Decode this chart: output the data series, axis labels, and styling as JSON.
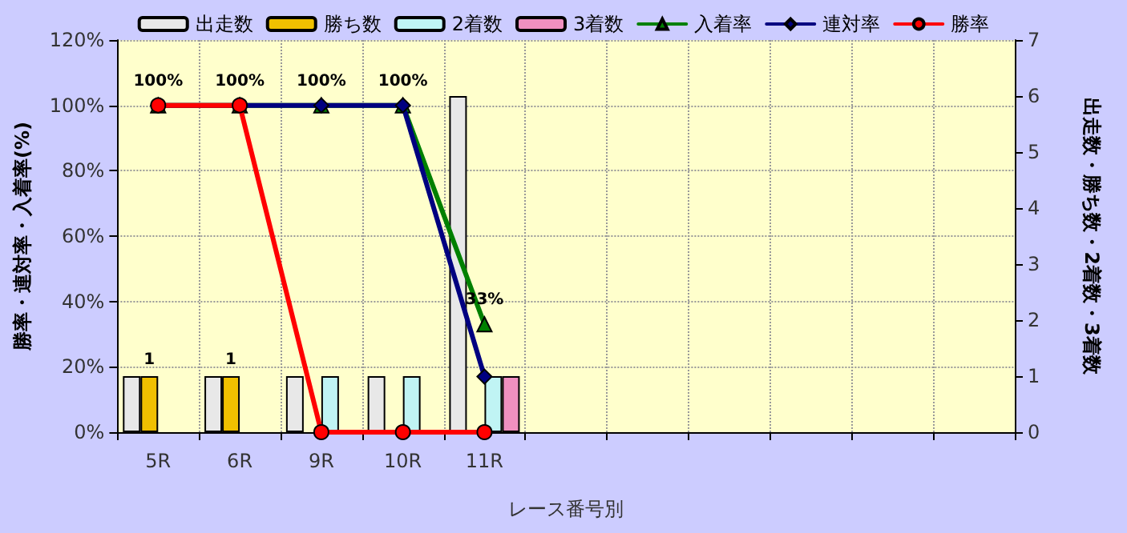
{
  "chart_data": {
    "type": "bar",
    "xlabel": "レース番号別",
    "ylabel": "勝率・連対率・入着率(%)",
    "y2label": "出走数・勝ち数・2着数・3着数",
    "categories": [
      "5R",
      "6R",
      "9R",
      "10R",
      "11R",
      null,
      null,
      null,
      null,
      null,
      null
    ],
    "series": [
      {
        "name": "出走数",
        "axis": "y2",
        "color": "#e8e8e8",
        "values": [
          1,
          1,
          1,
          1,
          6,
          null,
          null,
          null,
          null,
          null,
          null
        ]
      },
      {
        "name": "勝ち数",
        "axis": "y2",
        "color": "#f0c000",
        "values": [
          1,
          1,
          null,
          null,
          null,
          null,
          null,
          null,
          null,
          null,
          null
        ],
        "value_labels": [
          "1",
          "1",
          null,
          null,
          null,
          null,
          null,
          null,
          null,
          null,
          null
        ]
      },
      {
        "name": "2着数",
        "axis": "y2",
        "color": "#c0f4f4",
        "values": [
          null,
          null,
          1,
          1,
          1,
          null,
          null,
          null,
          null,
          null,
          null
        ]
      },
      {
        "name": "3着数",
        "axis": "y2",
        "color": "#f090c0",
        "values": [
          null,
          null,
          null,
          null,
          1,
          null,
          null,
          null,
          null,
          null,
          null
        ]
      },
      {
        "name": "入着率",
        "type": "line",
        "marker": "triangle",
        "color": "#008000",
        "values": [
          100,
          100,
          100,
          100,
          33,
          null,
          null,
          null,
          null,
          null,
          null
        ],
        "value_labels": [
          "100%",
          "100%",
          "100%",
          "100%",
          "33%",
          null,
          null,
          null,
          null,
          null,
          null
        ]
      },
      {
        "name": "連対率",
        "type": "line",
        "marker": "diamond",
        "color": "#000080",
        "values": [
          100,
          100,
          100,
          100,
          17,
          null,
          null,
          null,
          null,
          null,
          null
        ]
      },
      {
        "name": "勝率",
        "type": "line",
        "marker": "circle",
        "color": "#ff0000",
        "values": [
          100,
          100,
          0,
          0,
          0,
          null,
          null,
          null,
          null,
          null,
          null
        ]
      }
    ],
    "ylim": [
      0,
      120
    ],
    "yticks": [
      {
        "value": 0,
        "label": "0%"
      },
      {
        "value": 20,
        "label": "20%"
      },
      {
        "value": 40,
        "label": "40%"
      },
      {
        "value": 60,
        "label": "60%"
      },
      {
        "value": 80,
        "label": "80%"
      },
      {
        "value": 100,
        "label": "100%"
      },
      {
        "value": 120,
        "label": "120%"
      }
    ],
    "y2lim": [
      0,
      7
    ],
    "y2ticks": [
      0,
      1,
      2,
      3,
      4,
      5,
      6,
      7
    ],
    "grid": true,
    "legend": "top"
  }
}
